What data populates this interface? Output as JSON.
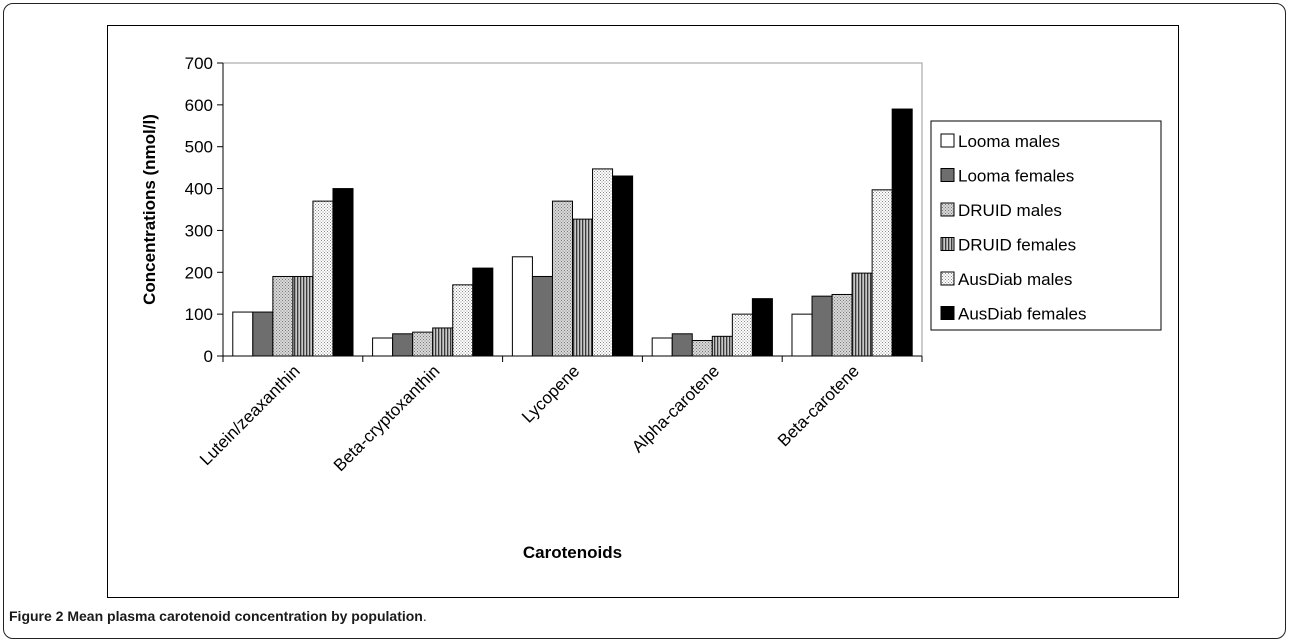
{
  "figure": {
    "label": "Figure 2",
    "caption": "Mean plasma carotenoid concentration by population",
    "caption_end": "."
  },
  "chart_data": {
    "type": "bar",
    "xlabel": "Carotenoids",
    "ylabel": "Concentrations (nmol/l)",
    "ylim": [
      0,
      700
    ],
    "yticks": [
      0,
      100,
      200,
      300,
      400,
      500,
      600,
      700
    ],
    "grid": false,
    "legend_position": "right",
    "categories": [
      "Lutein/zeaxanthin",
      "Beta-cryptoxanthin",
      "Lycopene",
      "Alpha-carotene",
      "Beta-carotene"
    ],
    "series": [
      {
        "name": "Looma males",
        "pattern": "white",
        "values": [
          105,
          43,
          237,
          43,
          100
        ]
      },
      {
        "name": "Looma females",
        "pattern": "dark-gray",
        "values": [
          105,
          53,
          190,
          53,
          143
        ]
      },
      {
        "name": "DRUID males",
        "pattern": "light-dotted",
        "values": [
          190,
          57,
          370,
          37,
          147
        ]
      },
      {
        "name": "DRUID females",
        "pattern": "vertical-stripes",
        "values": [
          190,
          67,
          327,
          47,
          198
        ]
      },
      {
        "name": "AusDiab males",
        "pattern": "fine-dots",
        "values": [
          370,
          170,
          447,
          100,
          397
        ]
      },
      {
        "name": "AusDiab females",
        "pattern": "black",
        "values": [
          400,
          210,
          430,
          137,
          590
        ]
      }
    ]
  }
}
